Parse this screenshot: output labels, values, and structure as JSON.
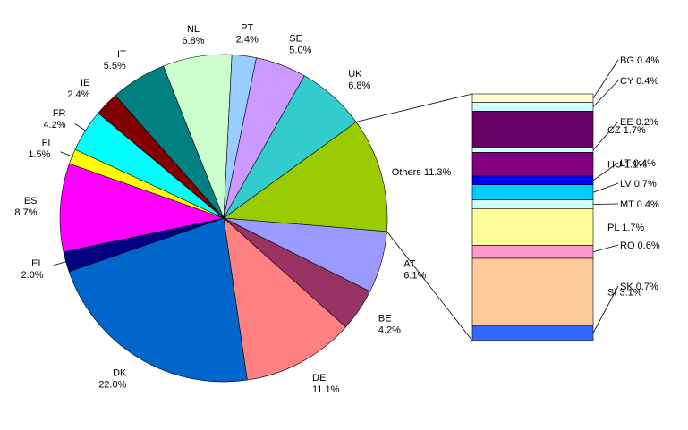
{
  "chart_data": {
    "type": "pie",
    "slices": [
      {
        "label": "Others",
        "value": 11.3,
        "value_label": "11.3%",
        "color": "#99CC00"
      },
      {
        "label": "AT",
        "value": 6.1,
        "value_label": "6.1%",
        "color": "#9999FF"
      },
      {
        "label": "BE",
        "value": 4.2,
        "value_label": "4.2%",
        "color": "#993366"
      },
      {
        "label": "DE",
        "value": 11.1,
        "value_label": "11.1%",
        "color": "#FF8080"
      },
      {
        "label": "DK",
        "value": 22.0,
        "value_label": "22.0%",
        "color": "#0066CC"
      },
      {
        "label": "EL",
        "value": 2.0,
        "value_label": "2.0%",
        "color": "#000080"
      },
      {
        "label": "ES",
        "value": 8.7,
        "value_label": "8.7%",
        "color": "#FF00FF"
      },
      {
        "label": "FI",
        "value": 1.5,
        "value_label": "1.5%",
        "color": "#FFFF00"
      },
      {
        "label": "FR",
        "value": 4.2,
        "value_label": "4.2%",
        "color": "#00FFFF"
      },
      {
        "label": "IE",
        "value": 2.4,
        "value_label": "2.4%",
        "color": "#800000"
      },
      {
        "label": "IT",
        "value": 5.5,
        "value_label": "5.5%",
        "color": "#008080"
      },
      {
        "label": "NL",
        "value": 6.8,
        "value_label": "6.8%",
        "color": "#CCFFCC"
      },
      {
        "label": "PT",
        "value": 2.4,
        "value_label": "2.4%",
        "color": "#99CCFF"
      },
      {
        "label": "SE",
        "value": 5.0,
        "value_label": "5.0%",
        "color": "#CC99FF"
      },
      {
        "label": "UK",
        "value": 6.8,
        "value_label": "6.8%",
        "color": "#33CCCC"
      }
    ],
    "breakdown": {
      "of": "Others",
      "type": "stacked-bar",
      "items": [
        {
          "label": "BG",
          "value": 0.4,
          "value_label": "0.4%",
          "color": "#FFFFCC"
        },
        {
          "label": "CY",
          "value": 0.4,
          "value_label": "0.4%",
          "color": "#CCFFFF"
        },
        {
          "label": "CZ",
          "value": 1.7,
          "value_label": "1.7%",
          "color": "#660066"
        },
        {
          "label": "EE",
          "value": 0.2,
          "value_label": "0.2%",
          "color": "#CCFFFF"
        },
        {
          "label": "HU",
          "value": 1.1,
          "value_label": "1.1%",
          "color": "#800080"
        },
        {
          "label": "LT",
          "value": 0.4,
          "value_label": "0.4%",
          "color": "#0000FF"
        },
        {
          "label": "LV",
          "value": 0.7,
          "value_label": "0.7%",
          "color": "#00CCFF"
        },
        {
          "label": "MT",
          "value": 0.4,
          "value_label": "0.4%",
          "color": "#CCFFFF"
        },
        {
          "label": "PL",
          "value": 1.7,
          "value_label": "1.7%",
          "color": "#FFFF99"
        },
        {
          "label": "RO",
          "value": 0.6,
          "value_label": "0.6%",
          "color": "#FF99CC"
        },
        {
          "label": "SI",
          "value": 3.1,
          "value_label": "3.1%",
          "color": "#FFCC99"
        },
        {
          "label": "SK",
          "value": 0.7,
          "value_label": "0.7%",
          "color": "#3366FF"
        }
      ]
    }
  }
}
